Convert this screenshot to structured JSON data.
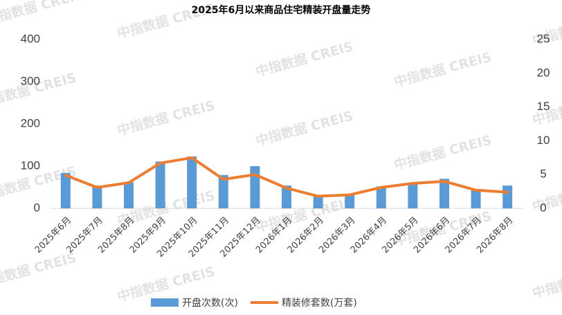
{
  "chart_data": {
    "type": "bar-line",
    "title": "2025年6月以来商品住宅精装开盘量走势",
    "watermark": "中指数据 CREIS",
    "categories": [
      "2025年6月",
      "2025年7月",
      "2025年8月",
      "2025年9月",
      "2025年10月",
      "2025年11月",
      "2025年12月",
      "2026年1月",
      "2026年2月",
      "2026年3月",
      "2026年4月",
      "2026年5月",
      "2026年6月",
      "2026年7月",
      "2026年8月"
    ],
    "series": [
      {
        "name": "开盘次数(次)",
        "type": "bar",
        "color": "#5b9bd5",
        "values": [
          84,
          54,
          62,
          111,
          123,
          79,
          100,
          54,
          30,
          33,
          52,
          59,
          70,
          43,
          54
        ]
      },
      {
        "name": "精装修套数(万套)",
        "type": "line",
        "axis": "y2",
        "color": "#ed7d31",
        "values": [
          4.9,
          3.1,
          3.8,
          6.7,
          7.5,
          4.3,
          5.0,
          3.0,
          1.8,
          2.0,
          3.1,
          3.7,
          4.0,
          2.7,
          2.4
        ]
      }
    ],
    "ylim": [
      0,
      400
    ],
    "yticks": [
      0,
      100,
      200,
      300,
      400
    ],
    "y2lim": [
      0,
      25
    ],
    "y2ticks": [
      0,
      5,
      10,
      15,
      20,
      25
    ],
    "legend": "bottom"
  }
}
